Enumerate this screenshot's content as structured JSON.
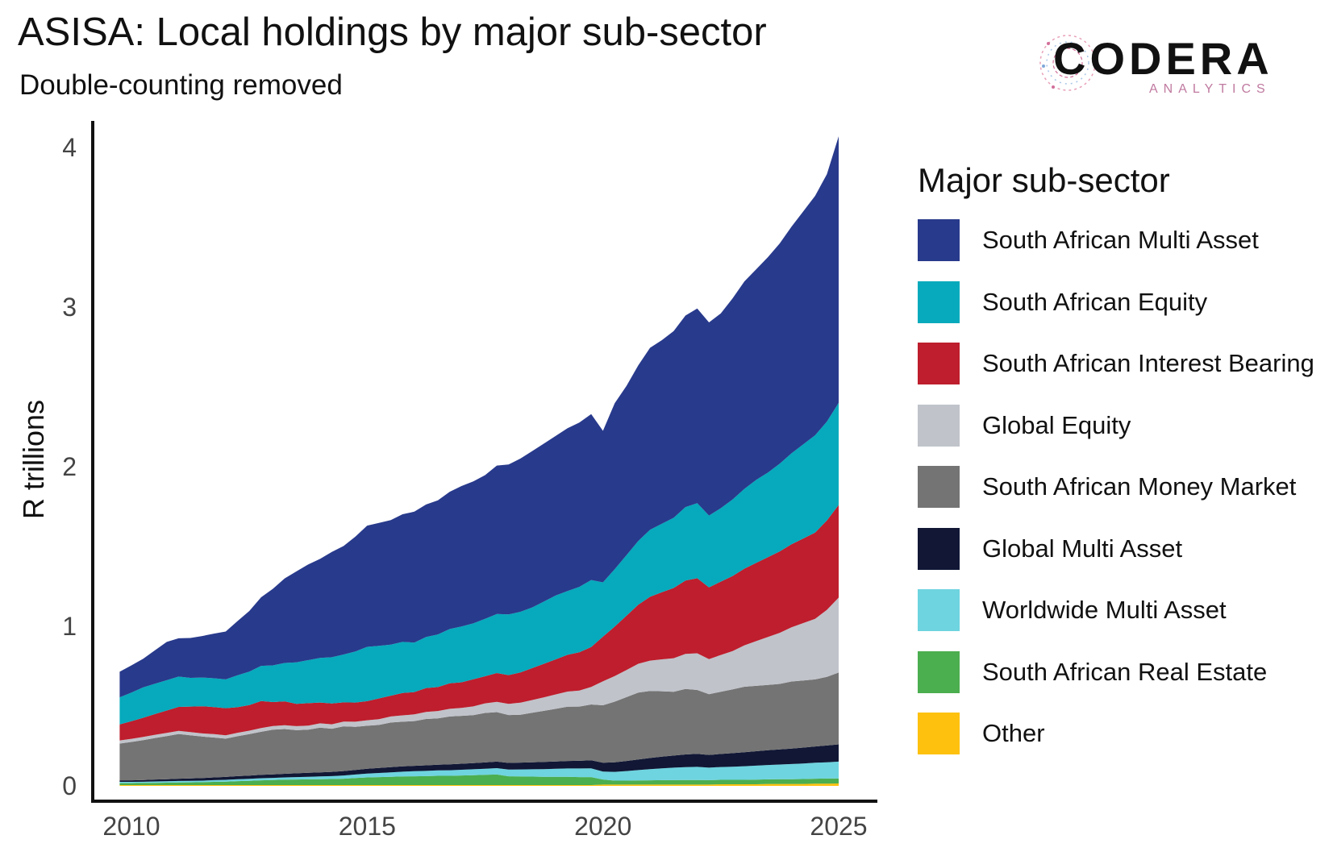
{
  "title": "ASISA: Local holdings by major sub-sector",
  "subtitle": "Double-counting removed",
  "logo": {
    "word": "CODERA",
    "sub": "ANALYTICS"
  },
  "chart_data": {
    "type": "area",
    "stacked": true,
    "title": "ASISA: Local holdings by major sub-sector",
    "subtitle": "Double-counting removed",
    "xlabel": "",
    "ylabel": "R trillions",
    "xlim": [
      2009.5,
      2026.0
    ],
    "ylim": [
      0,
      4.2
    ],
    "xticks": [
      "2010",
      "2015",
      "2020",
      "2025"
    ],
    "xtick_values": [
      2010,
      2015,
      2020,
      2025
    ],
    "yticks": [
      "0",
      "1",
      "2",
      "3",
      "4"
    ],
    "ytick_values": [
      0,
      1,
      2,
      3,
      4
    ],
    "legend_title": "Major sub-sector",
    "legend_position": "right",
    "grid": false,
    "x": [
      2009.75,
      2010.0,
      2010.25,
      2010.5,
      2010.75,
      2011.0,
      2011.25,
      2011.5,
      2011.75,
      2012.0,
      2012.25,
      2012.5,
      2012.75,
      2013.0,
      2013.25,
      2013.5,
      2013.75,
      2014.0,
      2014.25,
      2014.5,
      2014.75,
      2015.0,
      2015.25,
      2015.5,
      2015.75,
      2016.0,
      2016.25,
      2016.5,
      2016.75,
      2017.0,
      2017.25,
      2017.5,
      2017.75,
      2018.0,
      2018.25,
      2018.5,
      2018.75,
      2019.0,
      2019.25,
      2019.5,
      2019.75,
      2020.0,
      2020.25,
      2020.5,
      2020.75,
      2021.0,
      2021.25,
      2021.5,
      2021.75,
      2022.0,
      2022.25,
      2022.5,
      2022.75,
      2023.0,
      2023.25,
      2023.5,
      2023.75,
      2024.0,
      2024.25,
      2024.5,
      2024.75,
      2025.0
    ],
    "series": [
      {
        "name": "Other",
        "color": "#FDC10E",
        "values": [
          0.005,
          0.005,
          0.005,
          0.005,
          0.005,
          0.005,
          0.005,
          0.005,
          0.005,
          0.005,
          0.005,
          0.005,
          0.005,
          0.005,
          0.005,
          0.005,
          0.005,
          0.005,
          0.005,
          0.005,
          0.005,
          0.005,
          0.005,
          0.005,
          0.005,
          0.005,
          0.005,
          0.005,
          0.005,
          0.005,
          0.005,
          0.005,
          0.005,
          0.005,
          0.005,
          0.005,
          0.005,
          0.005,
          0.005,
          0.005,
          0.005,
          0.008,
          0.008,
          0.008,
          0.008,
          0.008,
          0.008,
          0.008,
          0.008,
          0.008,
          0.008,
          0.01,
          0.01,
          0.01,
          0.01,
          0.012,
          0.012,
          0.012,
          0.012,
          0.014,
          0.014,
          0.015
        ]
      },
      {
        "name": "South African Real Estate",
        "color": "#4BAE4F",
        "values": [
          0.012,
          0.012,
          0.013,
          0.014,
          0.015,
          0.016,
          0.017,
          0.018,
          0.02,
          0.022,
          0.025,
          0.027,
          0.03,
          0.032,
          0.034,
          0.035,
          0.036,
          0.037,
          0.038,
          0.04,
          0.044,
          0.048,
          0.05,
          0.052,
          0.054,
          0.055,
          0.056,
          0.058,
          0.058,
          0.06,
          0.062,
          0.064,
          0.066,
          0.055,
          0.054,
          0.053,
          0.052,
          0.052,
          0.052,
          0.05,
          0.05,
          0.032,
          0.025,
          0.025,
          0.026,
          0.027,
          0.028,
          0.028,
          0.029,
          0.029,
          0.028,
          0.028,
          0.028,
          0.028,
          0.029,
          0.029,
          0.03,
          0.03,
          0.031,
          0.031,
          0.032,
          0.032
        ]
      },
      {
        "name": "Worldwide Multi Asset",
        "color": "#6ED4DF",
        "values": [
          0.008,
          0.008,
          0.008,
          0.009,
          0.009,
          0.01,
          0.01,
          0.01,
          0.011,
          0.011,
          0.012,
          0.012,
          0.013,
          0.013,
          0.014,
          0.015,
          0.016,
          0.017,
          0.018,
          0.02,
          0.022,
          0.024,
          0.026,
          0.028,
          0.03,
          0.032,
          0.033,
          0.034,
          0.035,
          0.036,
          0.037,
          0.038,
          0.04,
          0.042,
          0.044,
          0.046,
          0.048,
          0.05,
          0.052,
          0.054,
          0.055,
          0.05,
          0.055,
          0.06,
          0.065,
          0.07,
          0.074,
          0.078,
          0.08,
          0.082,
          0.078,
          0.08,
          0.082,
          0.085,
          0.088,
          0.09,
          0.092,
          0.095,
          0.097,
          0.1,
          0.102,
          0.105
        ]
      },
      {
        "name": "Global Multi Asset",
        "color": "#111735",
        "values": [
          0.01,
          0.01,
          0.011,
          0.012,
          0.013,
          0.014,
          0.015,
          0.016,
          0.017,
          0.018,
          0.019,
          0.02,
          0.021,
          0.022,
          0.023,
          0.024,
          0.025,
          0.026,
          0.027,
          0.028,
          0.029,
          0.03,
          0.031,
          0.032,
          0.033,
          0.034,
          0.035,
          0.036,
          0.037,
          0.038,
          0.039,
          0.04,
          0.041,
          0.042,
          0.043,
          0.044,
          0.045,
          0.046,
          0.047,
          0.048,
          0.05,
          0.055,
          0.06,
          0.063,
          0.066,
          0.07,
          0.073,
          0.076,
          0.08,
          0.082,
          0.08,
          0.082,
          0.085,
          0.088,
          0.09,
          0.092,
          0.095,
          0.097,
          0.1,
          0.102,
          0.105,
          0.108
        ]
      },
      {
        "name": "South African Money Market",
        "color": "#747474",
        "values": [
          0.23,
          0.24,
          0.25,
          0.26,
          0.27,
          0.28,
          0.27,
          0.26,
          0.25,
          0.24,
          0.25,
          0.26,
          0.27,
          0.28,
          0.28,
          0.27,
          0.27,
          0.28,
          0.27,
          0.28,
          0.27,
          0.27,
          0.27,
          0.28,
          0.28,
          0.28,
          0.29,
          0.29,
          0.3,
          0.3,
          0.3,
          0.31,
          0.31,
          0.3,
          0.3,
          0.31,
          0.32,
          0.33,
          0.34,
          0.34,
          0.35,
          0.36,
          0.38,
          0.4,
          0.42,
          0.42,
          0.41,
          0.4,
          0.41,
          0.4,
          0.38,
          0.39,
          0.4,
          0.41,
          0.41,
          0.41,
          0.41,
          0.42,
          0.42,
          0.42,
          0.43,
          0.45
        ]
      },
      {
        "name": "Global Equity",
        "color": "#C0C3CA",
        "values": [
          0.02,
          0.02,
          0.02,
          0.02,
          0.02,
          0.02,
          0.02,
          0.02,
          0.021,
          0.021,
          0.022,
          0.022,
          0.023,
          0.023,
          0.024,
          0.025,
          0.026,
          0.027,
          0.028,
          0.03,
          0.032,
          0.034,
          0.036,
          0.038,
          0.04,
          0.042,
          0.044,
          0.046,
          0.048,
          0.05,
          0.055,
          0.06,
          0.065,
          0.07,
          0.075,
          0.08,
          0.085,
          0.09,
          0.095,
          0.1,
          0.11,
          0.15,
          0.16,
          0.17,
          0.18,
          0.19,
          0.2,
          0.21,
          0.22,
          0.23,
          0.22,
          0.23,
          0.24,
          0.26,
          0.28,
          0.3,
          0.32,
          0.34,
          0.36,
          0.38,
          0.42,
          0.47
        ]
      },
      {
        "name": "South African Interest Bearing",
        "color": "#BE1E2D",
        "values": [
          0.1,
          0.11,
          0.12,
          0.13,
          0.14,
          0.15,
          0.16,
          0.17,
          0.17,
          0.17,
          0.16,
          0.16,
          0.17,
          0.15,
          0.15,
          0.14,
          0.14,
          0.13,
          0.13,
          0.12,
          0.12,
          0.12,
          0.13,
          0.13,
          0.14,
          0.14,
          0.15,
          0.15,
          0.16,
          0.16,
          0.17,
          0.17,
          0.18,
          0.18,
          0.19,
          0.2,
          0.21,
          0.22,
          0.23,
          0.24,
          0.25,
          0.28,
          0.31,
          0.34,
          0.37,
          0.4,
          0.42,
          0.44,
          0.46,
          0.47,
          0.45,
          0.46,
          0.47,
          0.48,
          0.49,
          0.5,
          0.51,
          0.52,
          0.53,
          0.54,
          0.56,
          0.58
        ]
      },
      {
        "name": "South African Equity",
        "color": "#06AABC",
        "values": [
          0.17,
          0.18,
          0.19,
          0.19,
          0.19,
          0.19,
          0.18,
          0.18,
          0.18,
          0.18,
          0.2,
          0.21,
          0.22,
          0.23,
          0.24,
          0.26,
          0.27,
          0.28,
          0.29,
          0.3,
          0.32,
          0.34,
          0.33,
          0.32,
          0.32,
          0.31,
          0.32,
          0.33,
          0.34,
          0.35,
          0.35,
          0.36,
          0.37,
          0.38,
          0.38,
          0.38,
          0.39,
          0.4,
          0.4,
          0.41,
          0.42,
          0.34,
          0.36,
          0.38,
          0.4,
          0.42,
          0.43,
          0.44,
          0.46,
          0.47,
          0.45,
          0.46,
          0.48,
          0.5,
          0.52,
          0.53,
          0.55,
          0.57,
          0.59,
          0.61,
          0.62,
          0.64
        ]
      },
      {
        "name": "South African Multi Asset",
        "color": "#283A8C",
        "values": [
          0.16,
          0.17,
          0.18,
          0.21,
          0.24,
          0.24,
          0.25,
          0.26,
          0.28,
          0.3,
          0.34,
          0.38,
          0.43,
          0.48,
          0.53,
          0.57,
          0.6,
          0.62,
          0.66,
          0.68,
          0.72,
          0.76,
          0.77,
          0.78,
          0.8,
          0.82,
          0.83,
          0.84,
          0.86,
          0.88,
          0.89,
          0.9,
          0.93,
          0.94,
          0.96,
          0.98,
          0.99,
          1.0,
          1.02,
          1.03,
          1.04,
          0.95,
          1.04,
          1.06,
          1.1,
          1.14,
          1.15,
          1.17,
          1.2,
          1.22,
          1.21,
          1.22,
          1.26,
          1.3,
          1.32,
          1.35,
          1.38,
          1.42,
          1.46,
          1.5,
          1.55,
          1.67
        ]
      }
    ]
  },
  "legend": [
    {
      "label": "South African Multi Asset",
      "color": "#283A8C"
    },
    {
      "label": "South African Equity",
      "color": "#06AABC"
    },
    {
      "label": "South African Interest Bearing",
      "color": "#BE1E2D"
    },
    {
      "label": "Global Equity",
      "color": "#C0C3CA"
    },
    {
      "label": "South African Money Market",
      "color": "#747474"
    },
    {
      "label": "Global Multi Asset",
      "color": "#111735"
    },
    {
      "label": "Worldwide Multi Asset",
      "color": "#6ED4DF"
    },
    {
      "label": "South African Real Estate",
      "color": "#4BAE4F"
    },
    {
      "label": "Other",
      "color": "#FDC10E"
    }
  ]
}
